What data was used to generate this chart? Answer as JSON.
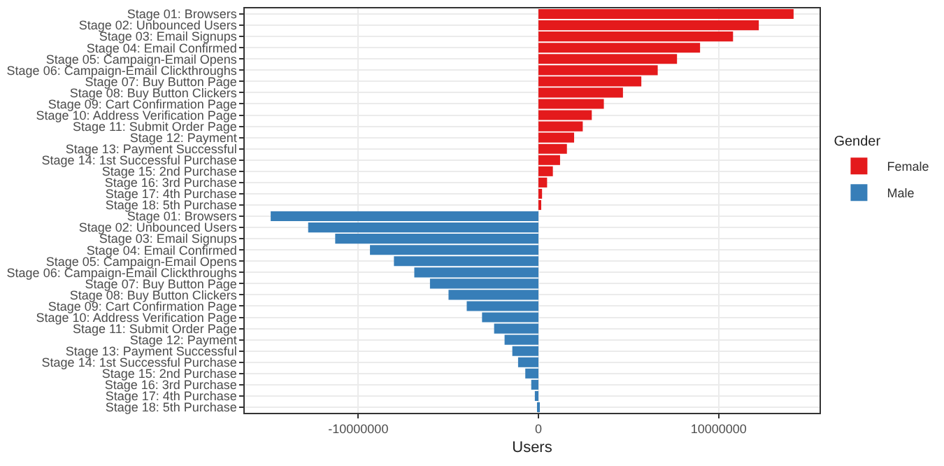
{
  "chart_data": {
    "type": "bar",
    "orientation": "horizontal",
    "xlabel": "Users",
    "legend_title": "Gender",
    "legend": "right",
    "grid": true,
    "categories": [
      "Stage 01: Browsers",
      "Stage 02: Unbounced Users",
      "Stage 03: Email Signups",
      "Stage 04: Email Confirmed",
      "Stage 05: Campaign-Email Opens",
      "Stage 06: Campaign-Email Clickthroughs",
      "Stage 07: Buy Button Page",
      "Stage 08: Buy Button Clickers",
      "Stage 09: Cart Confirmation Page",
      "Stage 10: Address Verification Page",
      "Stage 11: Submit Order Page",
      "Stage 12: Payment",
      "Stage 13: Payment Successful",
      "Stage 14: 1st Successful Purchase",
      "Stage 15: 2nd Purchase",
      "Stage 16: 3rd Purchase",
      "Stage 17: 4th Purchase",
      "Stage 18: 5th Purchase",
      "Stage 01: Browsers",
      "Stage 02: Unbounced Users",
      "Stage 03: Email Signups",
      "Stage 04: Email Confirmed",
      "Stage 05: Campaign-Email Opens",
      "Stage 06: Campaign-Email Clickthroughs",
      "Stage 07: Buy Button Page",
      "Stage 08: Buy Button Clickers",
      "Stage 09: Cart Confirmation Page",
      "Stage 10: Address Verification Page",
      "Stage 11: Submit Order Page",
      "Stage 12: Payment",
      "Stage 13: Payment Successful",
      "Stage 14: 1st Successful Purchase",
      "Stage 15: 2nd Purchase",
      "Stage 16: 3rd Purchase",
      "Stage 17: 4th Purchase",
      "Stage 18: 5th Purchase"
    ],
    "series": [
      {
        "name": "Female",
        "color": "#e41a1c",
        "values": [
          14160000,
          12230000,
          10800000,
          8970000,
          7690000,
          6620000,
          5710000,
          4690000,
          3630000,
          2960000,
          2460000,
          1980000,
          1580000,
          1200000,
          800000,
          480000,
          200000,
          80000,
          null,
          null,
          null,
          null,
          null,
          null,
          null,
          null,
          null,
          null,
          null,
          null,
          null,
          null,
          null,
          null,
          null,
          null
        ]
      },
      {
        "name": "Male",
        "color": "#377eb8",
        "values": [
          null,
          null,
          null,
          null,
          null,
          null,
          null,
          null,
          null,
          null,
          null,
          null,
          null,
          null,
          null,
          null,
          null,
          null,
          -14860000,
          -12780000,
          -11280000,
          -9350000,
          -8020000,
          -6890000,
          -6020000,
          -4990000,
          -3980000,
          -3130000,
          -2460000,
          -1880000,
          -1450000,
          -1130000,
          -730000,
          -400000,
          -200000,
          -80000
        ]
      }
    ],
    "xlim": [
      -16300000,
      15600000
    ],
    "xticks": [
      -10000000,
      0,
      10000000
    ]
  }
}
